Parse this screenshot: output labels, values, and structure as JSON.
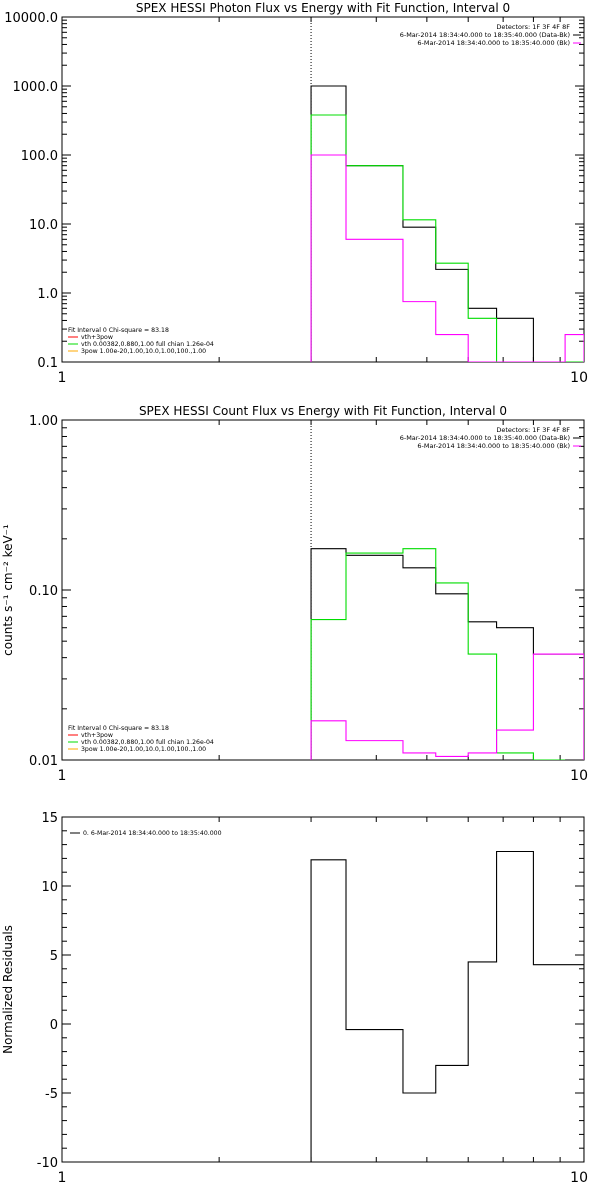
{
  "chart_data": [
    {
      "type": "line",
      "title": "SPEX HESSI Photon Flux vs Energy with Fit Function, Interval 0",
      "x_scale": "log",
      "y_scale": "log",
      "xlim": [
        1,
        10
      ],
      "ylim": [
        0.1,
        10000
      ],
      "x_ticks": [
        {
          "v": 1,
          "label": "1"
        },
        {
          "v": 10,
          "label": "10"
        }
      ],
      "y_ticks": [
        {
          "v": 0.1,
          "label": "0.1"
        },
        {
          "v": 1,
          "label": "1.0"
        },
        {
          "v": 10,
          "label": "10.0"
        },
        {
          "v": 100,
          "label": "100.0"
        },
        {
          "v": 1000,
          "label": "1000.0"
        },
        {
          "v": 10000,
          "label": "10000.0"
        }
      ],
      "vline_x": 3,
      "header_lines": [
        "Detectors: 1F 3F 4F 8F",
        "6-Mar-2014 18:34:40.000 to 18:35:40.000 (Data-Bk)",
        "6-Mar-2014 18:34:40.000 to 18:35:40.000 (Bk)"
      ],
      "header_colors": [
        "#000000",
        "#000000",
        "#ff00ff"
      ],
      "legend_lines": [
        "Fit Interval 0   Chi-square = 83.18",
        "vth+3pow",
        "vth 0.00382,0.880,1.00  full chian 1.26e-04",
        "3pow 1.00e-20,1.00,10.0,1.00,100.,1.00"
      ],
      "legend_colors": [
        "#000000",
        "#ff0000",
        "#00dd00",
        "#ffaa00"
      ],
      "series": [
        {
          "name": "6-Mar-2014 18:34:40.000 to 18:35:40.000 (Data-Bk)",
          "color": "#000000",
          "edges": [
            3,
            3.5,
            4.5,
            5.2,
            6,
            6.8,
            8,
            10
          ],
          "values": [
            1000,
            70,
            9,
            2.2,
            0.6,
            0.43,
            0.1
          ]
        },
        {
          "name": "vth+3pow",
          "color": "#00dd00",
          "edges": [
            3,
            3.5,
            4.5,
            5.2,
            6,
            6.8,
            8,
            10
          ],
          "values": [
            380,
            70,
            11.5,
            2.7,
            0.43,
            0.1,
            0.1
          ]
        },
        {
          "name": "6-Mar-2014 18:34:40.000 to 18:35:40.000 (Bk)",
          "color": "#ff00ff",
          "edges": [
            3,
            3.5,
            4.5,
            5.2,
            6,
            6.8,
            8,
            9.2,
            10
          ],
          "values": [
            100,
            6,
            0.75,
            0.25,
            0.1,
            0.1,
            0.1,
            0.25
          ]
        }
      ]
    },
    {
      "type": "line",
      "title": "SPEX HESSI Count Flux vs Energy with Fit Function, Interval 0",
      "ylabel": "counts s⁻¹ cm⁻² keV⁻¹",
      "x_scale": "log",
      "y_scale": "log",
      "xlim": [
        1,
        10
      ],
      "ylim": [
        0.01,
        1.0
      ],
      "x_ticks": [
        {
          "v": 1,
          "label": "1"
        },
        {
          "v": 10,
          "label": "10"
        }
      ],
      "y_ticks": [
        {
          "v": 0.01,
          "label": "0.01"
        },
        {
          "v": 0.1,
          "label": "0.10"
        },
        {
          "v": 1,
          "label": "1.00"
        }
      ],
      "vline_x": 3,
      "header_lines": [
        "Detectors: 1F 3F 4F 8F",
        "6-Mar-2014 18:34:40.000 to 18:35:40.000 (Data-Bk)",
        "6-Mar-2014 18:34:40.000 to 18:35:40.000 (Bk)"
      ],
      "header_colors": [
        "#000000",
        "#000000",
        "#ff00ff"
      ],
      "legend_lines": [
        "Fit Interval 0   Chi-square = 83.18",
        "vth+3pow",
        "vth 0.00382,0.880,1.00  full chian 1.26e-04",
        "3pow 1.00e-20,1.00,10.0,1.00,100.,1.00"
      ],
      "legend_colors": [
        "#000000",
        "#ff0000",
        "#00dd00",
        "#ffaa00"
      ],
      "series": [
        {
          "name": "6-Mar-2014 18:34:40.000 to 18:35:40.000 (Data-Bk)",
          "color": "#000000",
          "edges": [
            3,
            3.5,
            4.5,
            5.2,
            6,
            6.8,
            8,
            9.2,
            10
          ],
          "values": [
            0.175,
            0.16,
            0.135,
            0.095,
            0.065,
            0.06,
            0.042,
            0.042
          ]
        },
        {
          "name": "vth+3pow",
          "color": "#00dd00",
          "edges": [
            3,
            3.5,
            4.5,
            5.2,
            6,
            6.8,
            8,
            9.2
          ],
          "values": [
            0.067,
            0.165,
            0.175,
            0.11,
            0.042,
            0.011,
            0.009
          ]
        },
        {
          "name": "6-Mar-2014 18:34:40.000 to 18:35:40.000 (Bk)",
          "color": "#ff00ff",
          "edges": [
            3,
            3.5,
            4.5,
            5.2,
            6,
            6.8,
            8,
            9.2,
            10
          ],
          "values": [
            0.017,
            0.013,
            0.011,
            0.0105,
            0.011,
            0.015,
            0.042,
            0.042
          ]
        }
      ]
    },
    {
      "type": "line",
      "ylabel": "Normalized Residuals",
      "x_scale": "log",
      "y_scale": "linear",
      "xlim": [
        1,
        10
      ],
      "ylim": [
        -10,
        15
      ],
      "x_ticks": [
        {
          "v": 1,
          "label": "1"
        },
        {
          "v": 10,
          "label": "10"
        }
      ],
      "y_ticks": [
        {
          "v": -10,
          "label": "-10"
        },
        {
          "v": -5,
          "label": "-5"
        },
        {
          "v": 0,
          "label": "0"
        },
        {
          "v": 5,
          "label": "5"
        },
        {
          "v": 10,
          "label": "10"
        },
        {
          "v": 15,
          "label": "15"
        }
      ],
      "legend_lines": [
        "0. 6-Mar-2014 18:34:40.000 to 18:35:40.000"
      ],
      "legend_colors": [
        "#000000"
      ],
      "series": [
        {
          "name": "0. 6-Mar-2014 18:34:40.000 to 18:35:40.000",
          "color": "#000000",
          "edges": [
            3,
            3.5,
            4.5,
            5.2,
            6,
            6.8,
            8,
            9.2,
            10
          ],
          "values": [
            11.9,
            -0.4,
            -5.0,
            -3.0,
            4.5,
            12.5,
            4.3,
            4.3
          ],
          "drop_to": -10
        }
      ]
    }
  ]
}
